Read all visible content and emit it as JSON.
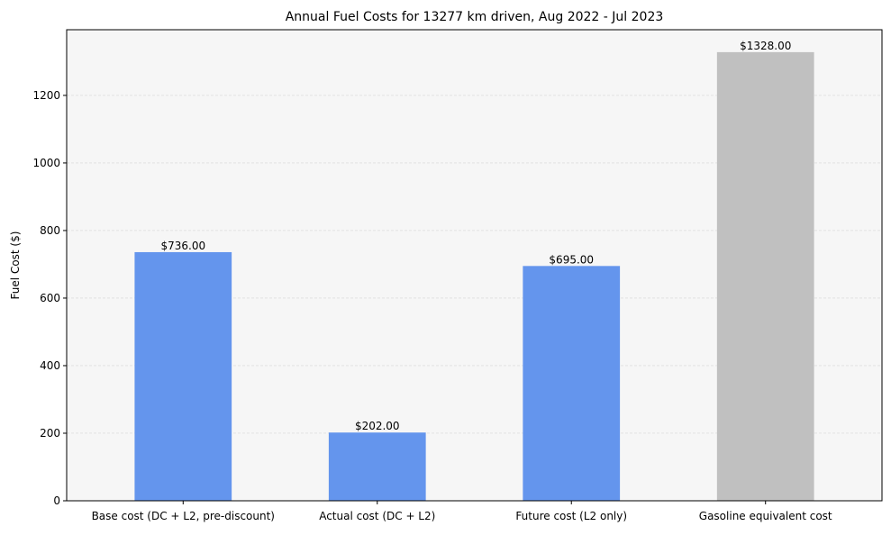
{
  "chart_data": {
    "type": "bar",
    "title": "Annual Fuel Costs for 13277 km driven, Aug 2022 - Jul 2023",
    "xlabel": "",
    "ylabel": "Fuel Cost ($)",
    "categories": [
      "Base cost (DC + L2, pre-discount)",
      "Actual cost (DC + L2)",
      "Future cost (L2 only)",
      "Gasoline equivalent cost"
    ],
    "values": [
      736,
      202,
      695,
      1328
    ],
    "data_labels": [
      "$736.00",
      "$202.00",
      "$695.00",
      "$1328.00"
    ],
    "bar_colors": [
      "#6495ed",
      "#6495ed",
      "#6495ed",
      "#c0c0c0"
    ],
    "ylim": [
      0,
      1394.4
    ],
    "yticks": [
      0,
      200,
      400,
      600,
      800,
      1000,
      1200
    ],
    "grid": true,
    "plot_background": "#f6f6f6",
    "legend": "none"
  }
}
